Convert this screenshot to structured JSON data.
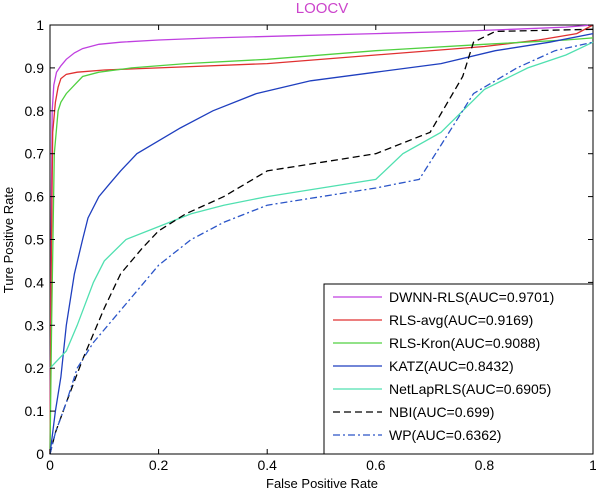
{
  "chart_data": {
    "type": "line",
    "title": "LOOCV",
    "title_color": "#cc44cc",
    "xlabel": "False Positive Rate",
    "ylabel": "Ture Positive Rate",
    "xlim": [
      0,
      1
    ],
    "ylim": [
      0,
      1
    ],
    "xticks": [
      "0",
      "0.2",
      "0.4",
      "0.6",
      "0.8",
      "1"
    ],
    "yticks": [
      "0",
      "0.1",
      "0.2",
      "0.3",
      "0.4",
      "0.5",
      "0.6",
      "0.7",
      "0.8",
      "0.9",
      "1"
    ],
    "grid": false,
    "legend_position": "bottom-right",
    "series": [
      {
        "name": "DWNN-RLS(AUC=0.9701)",
        "color": "#c040e0",
        "dash": "solid",
        "points": [
          [
            0,
            0
          ],
          [
            0.002,
            0.5
          ],
          [
            0.004,
            0.8
          ],
          [
            0.007,
            0.86
          ],
          [
            0.012,
            0.89
          ],
          [
            0.02,
            0.905
          ],
          [
            0.03,
            0.92
          ],
          [
            0.045,
            0.935
          ],
          [
            0.06,
            0.945
          ],
          [
            0.09,
            0.955
          ],
          [
            0.13,
            0.96
          ],
          [
            0.2,
            0.965
          ],
          [
            0.3,
            0.97
          ],
          [
            0.45,
            0.975
          ],
          [
            0.6,
            0.98
          ],
          [
            0.75,
            0.985
          ],
          [
            0.85,
            0.99
          ],
          [
            0.95,
            0.995
          ],
          [
            1,
            1
          ]
        ]
      },
      {
        "name": "RLS-avg(AUC=0.9169)",
        "color": "#e03030",
        "dash": "solid",
        "points": [
          [
            0,
            0
          ],
          [
            0.002,
            0.4
          ],
          [
            0.005,
            0.75
          ],
          [
            0.01,
            0.82
          ],
          [
            0.015,
            0.855
          ],
          [
            0.02,
            0.875
          ],
          [
            0.03,
            0.885
          ],
          [
            0.05,
            0.89
          ],
          [
            0.1,
            0.895
          ],
          [
            0.2,
            0.9
          ],
          [
            0.4,
            0.91
          ],
          [
            0.6,
            0.93
          ],
          [
            0.8,
            0.95
          ],
          [
            0.9,
            0.965
          ],
          [
            0.97,
            0.98
          ],
          [
            1,
            1
          ]
        ]
      },
      {
        "name": "RLS-Kron(AUC=0.9088)",
        "color": "#50d040",
        "dash": "solid",
        "points": [
          [
            0,
            0
          ],
          [
            0.003,
            0.3
          ],
          [
            0.008,
            0.7
          ],
          [
            0.015,
            0.8
          ],
          [
            0.02,
            0.82
          ],
          [
            0.03,
            0.84
          ],
          [
            0.045,
            0.86
          ],
          [
            0.06,
            0.88
          ],
          [
            0.09,
            0.89
          ],
          [
            0.15,
            0.9
          ],
          [
            0.25,
            0.91
          ],
          [
            0.4,
            0.92
          ],
          [
            0.6,
            0.94
          ],
          [
            0.8,
            0.955
          ],
          [
            0.95,
            0.965
          ],
          [
            1,
            0.97
          ]
        ]
      },
      {
        "name": "KATZ(AUC=0.8432)",
        "color": "#1f3fbf",
        "dash": "solid",
        "points": [
          [
            0,
            0
          ],
          [
            0.005,
            0.05
          ],
          [
            0.01,
            0.1
          ],
          [
            0.02,
            0.18
          ],
          [
            0.03,
            0.3
          ],
          [
            0.045,
            0.42
          ],
          [
            0.06,
            0.5
          ],
          [
            0.07,
            0.55
          ],
          [
            0.09,
            0.6
          ],
          [
            0.11,
            0.63
          ],
          [
            0.13,
            0.66
          ],
          [
            0.16,
            0.7
          ],
          [
            0.2,
            0.73
          ],
          [
            0.24,
            0.76
          ],
          [
            0.3,
            0.8
          ],
          [
            0.38,
            0.84
          ],
          [
            0.48,
            0.87
          ],
          [
            0.6,
            0.89
          ],
          [
            0.72,
            0.91
          ],
          [
            0.82,
            0.94
          ],
          [
            0.92,
            0.96
          ],
          [
            1,
            0.98
          ]
        ]
      },
      {
        "name": "NetLapRLS(AUC=0.6905)",
        "color": "#50e0b0",
        "dash": "solid",
        "points": [
          [
            0,
            0.2
          ],
          [
            0.03,
            0.24
          ],
          [
            0.05,
            0.3
          ],
          [
            0.08,
            0.4
          ],
          [
            0.1,
            0.45
          ],
          [
            0.14,
            0.5
          ],
          [
            0.2,
            0.53
          ],
          [
            0.26,
            0.56
          ],
          [
            0.32,
            0.58
          ],
          [
            0.4,
            0.6
          ],
          [
            0.5,
            0.62
          ],
          [
            0.6,
            0.64
          ],
          [
            0.65,
            0.7
          ],
          [
            0.72,
            0.75
          ],
          [
            0.8,
            0.85
          ],
          [
            0.88,
            0.9
          ],
          [
            0.95,
            0.93
          ],
          [
            1,
            0.96
          ]
        ]
      },
      {
        "name": "NBI(AUC=0.699)",
        "color": "#000000",
        "dash": "dashed",
        "points": [
          [
            0,
            0
          ],
          [
            0.01,
            0.05
          ],
          [
            0.03,
            0.12
          ],
          [
            0.06,
            0.22
          ],
          [
            0.08,
            0.28
          ],
          [
            0.1,
            0.34
          ],
          [
            0.13,
            0.42
          ],
          [
            0.17,
            0.48
          ],
          [
            0.2,
            0.52
          ],
          [
            0.25,
            0.56
          ],
          [
            0.32,
            0.6
          ],
          [
            0.4,
            0.66
          ],
          [
            0.5,
            0.68
          ],
          [
            0.6,
            0.7
          ],
          [
            0.7,
            0.75
          ],
          [
            0.76,
            0.88
          ],
          [
            0.78,
            0.96
          ],
          [
            0.82,
            0.985
          ],
          [
            1,
            0.99
          ]
        ]
      },
      {
        "name": "WP(AUC=0.6362)",
        "color": "#2b55c8",
        "dash": "dashdot",
        "points": [
          [
            0,
            0
          ],
          [
            0.01,
            0.05
          ],
          [
            0.03,
            0.12
          ],
          [
            0.05,
            0.2
          ],
          [
            0.08,
            0.26
          ],
          [
            0.12,
            0.32
          ],
          [
            0.16,
            0.38
          ],
          [
            0.2,
            0.44
          ],
          [
            0.26,
            0.5
          ],
          [
            0.32,
            0.54
          ],
          [
            0.4,
            0.58
          ],
          [
            0.5,
            0.6
          ],
          [
            0.6,
            0.62
          ],
          [
            0.68,
            0.64
          ],
          [
            0.72,
            0.72
          ],
          [
            0.78,
            0.84
          ],
          [
            0.86,
            0.9
          ],
          [
            0.93,
            0.94
          ],
          [
            1,
            0.96
          ]
        ]
      }
    ]
  }
}
